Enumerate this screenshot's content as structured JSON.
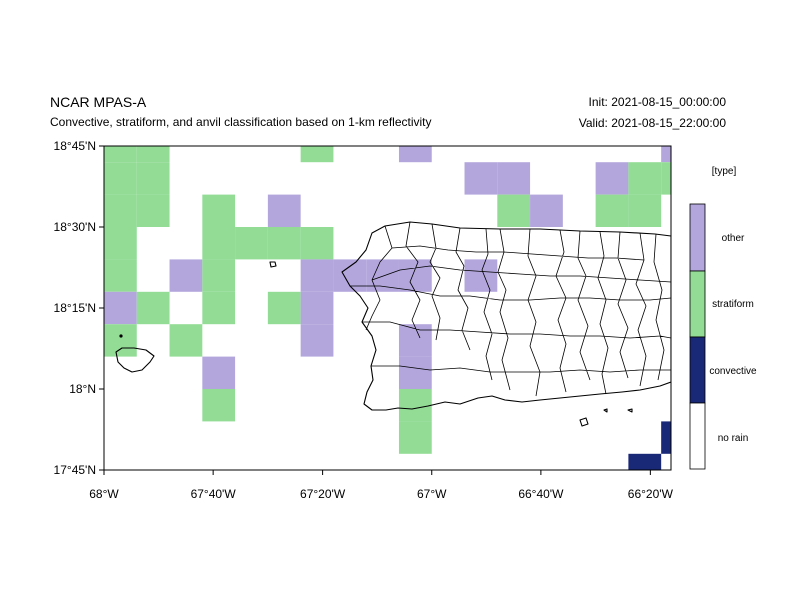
{
  "header": {
    "title": "NCAR MPAS-A",
    "subtitle": "Convective, stratiform, and anvil classification based on 1-km reflectivity",
    "init": "Init: 2021-08-15_00:00:00",
    "valid": "Valid: 2021-08-15_22:00:00"
  },
  "colors": {
    "other": "#b3a6dc",
    "stratiform": "#92dc96",
    "convective": "#1a2878",
    "no_rain": "#ffffff"
  },
  "chart_data": {
    "type": "heatmap",
    "title": "NCAR MPAS-A",
    "subtitle": "Convective, stratiform, and anvil classification based on 1-km reflectivity",
    "xlim": [
      -68.0,
      -66.27
    ],
    "ylim": [
      17.75,
      18.75
    ],
    "x_ticks": [
      -68.0,
      -67.667,
      -67.333,
      -67.0,
      -66.667,
      -66.333
    ],
    "x_tick_labels": [
      "68°W",
      "67°40'W",
      "67°20'W",
      "67°W",
      "66°40'W",
      "66°20'W"
    ],
    "y_ticks": [
      17.75,
      18.0,
      18.25,
      18.5,
      18.75
    ],
    "y_tick_labels": [
      "17°45'N",
      "18°N",
      "18°15'N",
      "18°30'N",
      "18°45'N"
    ],
    "legend": {
      "title": "[type]",
      "entries": [
        "other",
        "stratiform",
        "convective",
        "no rain"
      ]
    },
    "cell_size_deg": 0.1,
    "cells": [
      {
        "lon": -68.0,
        "lat": 18.7,
        "type": "stratiform"
      },
      {
        "lon": -67.9,
        "lat": 18.7,
        "type": "stratiform"
      },
      {
        "lon": -68.0,
        "lat": 18.6,
        "type": "stratiform"
      },
      {
        "lon": -67.9,
        "lat": 18.6,
        "type": "stratiform"
      },
      {
        "lon": -68.0,
        "lat": 18.5,
        "type": "stratiform"
      },
      {
        "lon": -67.9,
        "lat": 18.5,
        "type": "stratiform"
      },
      {
        "lon": -68.0,
        "lat": 18.4,
        "type": "stratiform"
      },
      {
        "lon": -68.0,
        "lat": 18.3,
        "type": "stratiform"
      },
      {
        "lon": -68.0,
        "lat": 18.2,
        "type": "other"
      },
      {
        "lon": -67.9,
        "lat": 18.2,
        "type": "stratiform"
      },
      {
        "lon": -68.0,
        "lat": 18.1,
        "type": "stratiform"
      },
      {
        "lon": -67.8,
        "lat": 18.3,
        "type": "other"
      },
      {
        "lon": -67.8,
        "lat": 18.1,
        "type": "stratiform"
      },
      {
        "lon": -67.7,
        "lat": 18.5,
        "type": "stratiform"
      },
      {
        "lon": -67.7,
        "lat": 18.4,
        "type": "stratiform"
      },
      {
        "lon": -67.7,
        "lat": 18.3,
        "type": "stratiform"
      },
      {
        "lon": -67.7,
        "lat": 18.2,
        "type": "stratiform"
      },
      {
        "lon": -67.7,
        "lat": 18.0,
        "type": "other"
      },
      {
        "lon": -67.7,
        "lat": 17.9,
        "type": "stratiform"
      },
      {
        "lon": -67.6,
        "lat": 18.4,
        "type": "stratiform"
      },
      {
        "lon": -67.5,
        "lat": 18.5,
        "type": "other"
      },
      {
        "lon": -67.5,
        "lat": 18.4,
        "type": "stratiform"
      },
      {
        "lon": -67.5,
        "lat": 18.2,
        "type": "stratiform"
      },
      {
        "lon": -67.4,
        "lat": 18.4,
        "type": "stratiform"
      },
      {
        "lon": -67.4,
        "lat": 18.3,
        "type": "other"
      },
      {
        "lon": -67.4,
        "lat": 18.2,
        "type": "other"
      },
      {
        "lon": -67.4,
        "lat": 18.1,
        "type": "other"
      },
      {
        "lon": -67.3,
        "lat": 18.3,
        "type": "other"
      },
      {
        "lon": -67.2,
        "lat": 18.3,
        "type": "other"
      },
      {
        "lon": -67.1,
        "lat": 18.3,
        "type": "other"
      },
      {
        "lon": -67.4,
        "lat": 18.7,
        "type": "stratiform"
      },
      {
        "lon": -67.1,
        "lat": 18.7,
        "type": "other"
      },
      {
        "lon": -67.1,
        "lat": 18.1,
        "type": "other"
      },
      {
        "lon": -67.1,
        "lat": 18.0,
        "type": "other"
      },
      {
        "lon": -67.1,
        "lat": 17.9,
        "type": "stratiform"
      },
      {
        "lon": -67.1,
        "lat": 17.8,
        "type": "stratiform"
      },
      {
        "lon": -66.9,
        "lat": 18.6,
        "type": "other"
      },
      {
        "lon": -66.8,
        "lat": 18.6,
        "type": "other"
      },
      {
        "lon": -66.8,
        "lat": 18.5,
        "type": "stratiform"
      },
      {
        "lon": -66.7,
        "lat": 18.5,
        "type": "other"
      },
      {
        "lon": -66.9,
        "lat": 18.3,
        "type": "other"
      },
      {
        "lon": -66.5,
        "lat": 18.6,
        "type": "other"
      },
      {
        "lon": -66.5,
        "lat": 18.5,
        "type": "stratiform"
      },
      {
        "lon": -66.4,
        "lat": 18.6,
        "type": "stratiform"
      },
      {
        "lon": -66.4,
        "lat": 18.5,
        "type": "stratiform"
      },
      {
        "lon": -66.3,
        "lat": 18.7,
        "type": "other"
      },
      {
        "lon": -66.3,
        "lat": 18.6,
        "type": "stratiform"
      },
      {
        "lon": -66.3,
        "lat": 17.8,
        "type": "convective"
      },
      {
        "lon": -66.4,
        "lat": 17.7,
        "type": "convective"
      }
    ]
  }
}
